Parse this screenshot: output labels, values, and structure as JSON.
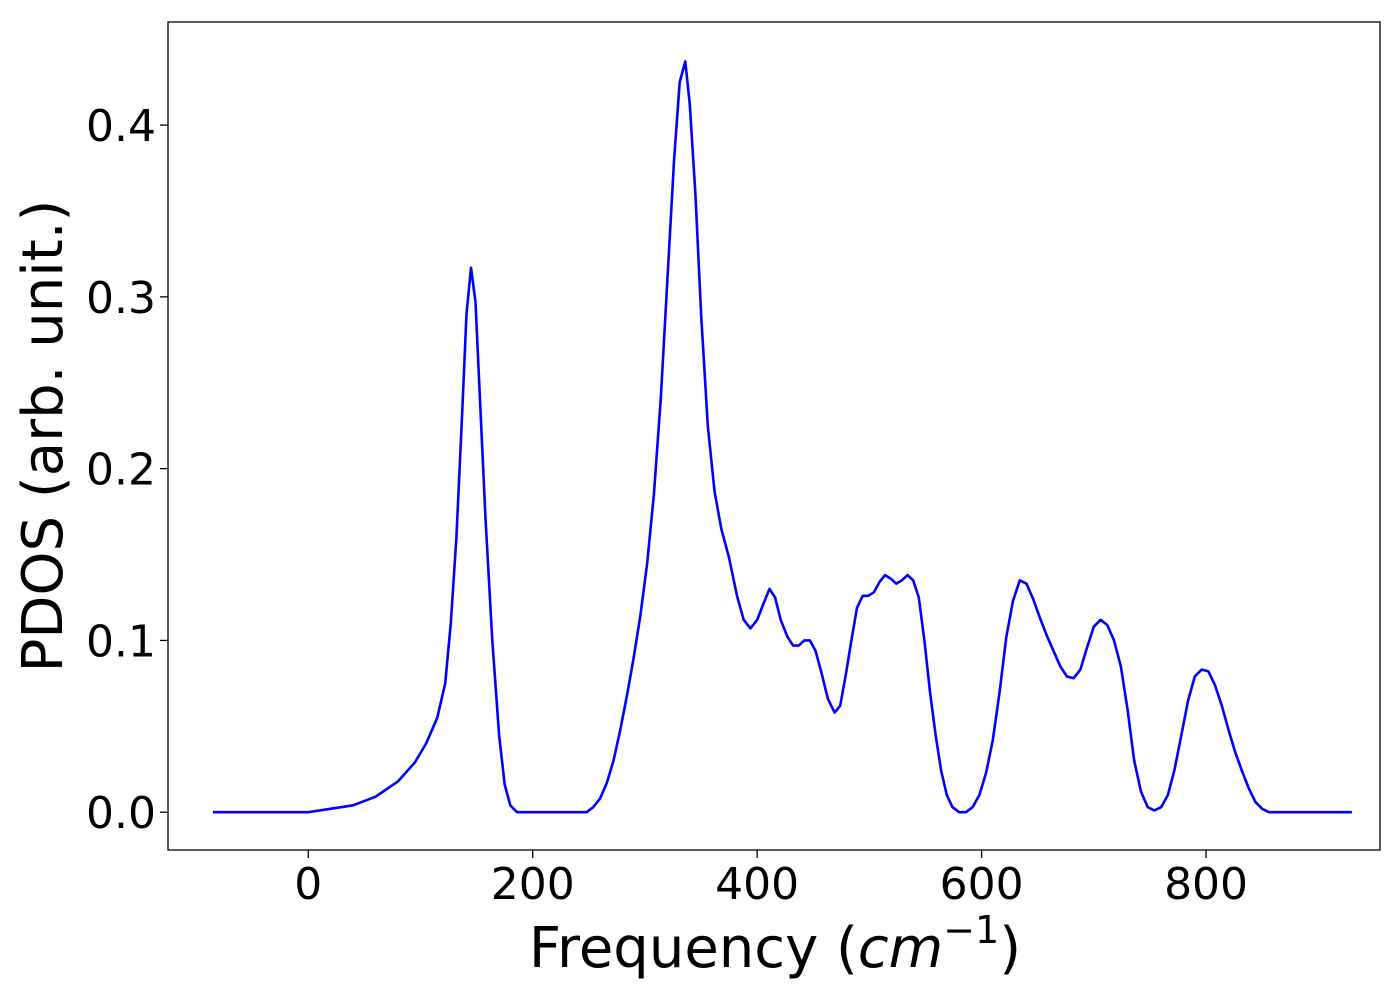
{
  "chart_data": {
    "type": "line",
    "title": "",
    "xlabel_main": "Frequency (",
    "xlabel_math": "cm",
    "xlabel_sup": "−1",
    "xlabel_close": ")",
    "ylabel": "PDOS (arb. unit.)",
    "xlim": [
      -125,
      955
    ],
    "ylim": [
      -0.022,
      0.46
    ],
    "xticks": [
      0,
      200,
      400,
      600,
      800
    ],
    "xtick_labels": [
      "0",
      "200",
      "400",
      "600",
      "800"
    ],
    "yticks": [
      0.0,
      0.1,
      0.2,
      0.3,
      0.4
    ],
    "ytick_labels": [
      "0.0",
      "0.1",
      "0.2",
      "0.3",
      "0.4"
    ],
    "grid": false,
    "series": [
      {
        "color": "#0000ff",
        "x": [
          -85,
          -40,
          0,
          40,
          60,
          80,
          95,
          105,
          115,
          122,
          127,
          132,
          137,
          141,
          145,
          149,
          153,
          158,
          164,
          170,
          175,
          180,
          186,
          200,
          230,
          248,
          254,
          260,
          266,
          272,
          278,
          284,
          290,
          296,
          302,
          308,
          314,
          320,
          326,
          331,
          336,
          340,
          345,
          350,
          356,
          362,
          368,
          375,
          382,
          388,
          394,
          400,
          406,
          411,
          416,
          421,
          427,
          432,
          437,
          442,
          447,
          452,
          457,
          463,
          469,
          474,
          479,
          484,
          489,
          494,
          499,
          504,
          509,
          514,
          519,
          524,
          529,
          534,
          539,
          544,
          549,
          554,
          559,
          564,
          569,
          574,
          580,
          586,
          592,
          598,
          604,
          610,
          616,
          622,
          628,
          634,
          640,
          646,
          652,
          658,
          664,
          670,
          676,
          682,
          688,
          694,
          700,
          706,
          712,
          718,
          724,
          730,
          736,
          742,
          748,
          754,
          760,
          766,
          772,
          778,
          784,
          790,
          796,
          802,
          808,
          814,
          820,
          826,
          832,
          838,
          844,
          850,
          856,
          865,
          900,
          930
        ],
        "y": [
          0.0,
          0.0,
          0.0,
          0.004,
          0.009,
          0.018,
          0.029,
          0.04,
          0.055,
          0.075,
          0.11,
          0.16,
          0.23,
          0.29,
          0.317,
          0.297,
          0.24,
          0.17,
          0.1,
          0.045,
          0.016,
          0.004,
          0.0,
          0.0,
          0.0,
          0.0,
          0.003,
          0.008,
          0.017,
          0.03,
          0.048,
          0.068,
          0.09,
          0.115,
          0.145,
          0.185,
          0.24,
          0.31,
          0.38,
          0.425,
          0.437,
          0.412,
          0.36,
          0.29,
          0.225,
          0.187,
          0.165,
          0.148,
          0.126,
          0.112,
          0.107,
          0.112,
          0.122,
          0.13,
          0.125,
          0.112,
          0.102,
          0.097,
          0.097,
          0.1,
          0.1,
          0.094,
          0.082,
          0.066,
          0.058,
          0.062,
          0.08,
          0.1,
          0.119,
          0.126,
          0.126,
          0.128,
          0.134,
          0.138,
          0.136,
          0.133,
          0.135,
          0.138,
          0.135,
          0.125,
          0.1,
          0.07,
          0.045,
          0.024,
          0.01,
          0.003,
          0.0,
          0.0,
          0.003,
          0.01,
          0.023,
          0.042,
          0.07,
          0.102,
          0.123,
          0.135,
          0.133,
          0.124,
          0.113,
          0.103,
          0.094,
          0.085,
          0.079,
          0.078,
          0.083,
          0.096,
          0.108,
          0.112,
          0.109,
          0.1,
          0.085,
          0.06,
          0.03,
          0.012,
          0.003,
          0.001,
          0.003,
          0.01,
          0.025,
          0.045,
          0.065,
          0.079,
          0.083,
          0.082,
          0.074,
          0.062,
          0.048,
          0.035,
          0.024,
          0.014,
          0.006,
          0.002,
          0.0,
          0.0,
          0.0,
          0.0
        ]
      }
    ]
  }
}
